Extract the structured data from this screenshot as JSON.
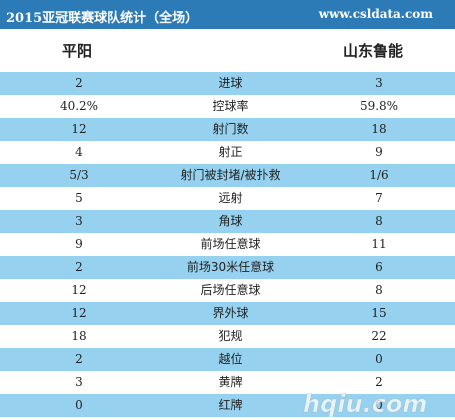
{
  "title": "2015亚冠联赛球队统计（全场）",
  "site": "www.csldata.com",
  "home_team": "平阳",
  "away_team": "山东鲁能",
  "colors": {
    "title_bar": "#2d7bb6",
    "row_blue": "#96d2ef",
    "row_white": "#ffffff"
  },
  "stats": [
    {
      "home": "2",
      "stat": "进球",
      "away": "3"
    },
    {
      "home": "40.2%",
      "stat": "控球率",
      "away": "59.8%"
    },
    {
      "home": "12",
      "stat": "射门数",
      "away": "18"
    },
    {
      "home": "4",
      "stat": "射正",
      "away": "9"
    },
    {
      "home": "5/3",
      "stat": "射门被封堵/被扑救",
      "away": "1/6"
    },
    {
      "home": "5",
      "stat": "远射",
      "away": "7"
    },
    {
      "home": "3",
      "stat": "角球",
      "away": "8"
    },
    {
      "home": "9",
      "stat": "前场任意球",
      "away": "11"
    },
    {
      "home": "2",
      "stat": "前场30米任意球",
      "away": "6"
    },
    {
      "home": "12",
      "stat": "后场任意球",
      "away": "8"
    },
    {
      "home": "12",
      "stat": "界外球",
      "away": "15"
    },
    {
      "home": "18",
      "stat": "犯规",
      "away": "22"
    },
    {
      "home": "2",
      "stat": "越位",
      "away": "0"
    },
    {
      "home": "3",
      "stat": "黄牌",
      "away": "2"
    },
    {
      "home": "0",
      "stat": "红牌",
      "away": "0"
    }
  ],
  "watermark": "hqiu.com"
}
